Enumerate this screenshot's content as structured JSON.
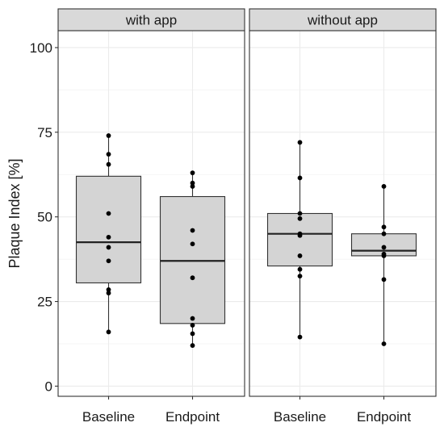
{
  "chart_data": {
    "type": "boxplot",
    "ylabel": "Plaque Index [%]",
    "xlabel": "",
    "ylim": [
      -3,
      105
    ],
    "y_ticks": [
      0,
      25,
      50,
      75,
      100
    ],
    "y_tick_labels": [
      "0",
      "25",
      "50",
      "75",
      "100"
    ],
    "grid": true,
    "panels": [
      {
        "label": "with app",
        "categories": [
          "Baseline",
          "Endpoint"
        ],
        "boxes": [
          {
            "category": "Baseline",
            "q1": 30.5,
            "median": 42.5,
            "q3": 62,
            "whisker_low": 16,
            "whisker_high": 74,
            "points": [
              74,
              68.5,
              65.5,
              51,
              44,
              41,
              37,
              28.5,
              27.5,
              16
            ]
          },
          {
            "category": "Endpoint",
            "q1": 18.5,
            "median": 37,
            "q3": 56,
            "whisker_low": 12,
            "whisker_high": 63,
            "points": [
              63,
              60,
              59,
              46,
              42,
              32,
              20,
              18,
              15.5,
              12
            ]
          }
        ]
      },
      {
        "label": "without app",
        "categories": [
          "Baseline",
          "Endpoint"
        ],
        "boxes": [
          {
            "category": "Baseline",
            "q1": 35.5,
            "median": 45,
            "q3": 51,
            "whisker_low": 14.5,
            "whisker_high": 72,
            "points": [
              72,
              61.5,
              51,
              49.5,
              45,
              44.5,
              38.5,
              34.5,
              32.5,
              14.5
            ]
          },
          {
            "category": "Endpoint",
            "q1": 38.5,
            "median": 40,
            "q3": 45,
            "whisker_low": 12.5,
            "whisker_high": 59,
            "points": [
              59,
              47,
              45,
              41,
              39,
              38.5,
              31.5,
              12.5
            ]
          }
        ]
      }
    ],
    "colors": {
      "box_fill": "#d4d4d4",
      "strip_fill": "#d9d9d9",
      "gridline": "#ebebeb",
      "frame": "#333333",
      "point": "#000000"
    }
  }
}
